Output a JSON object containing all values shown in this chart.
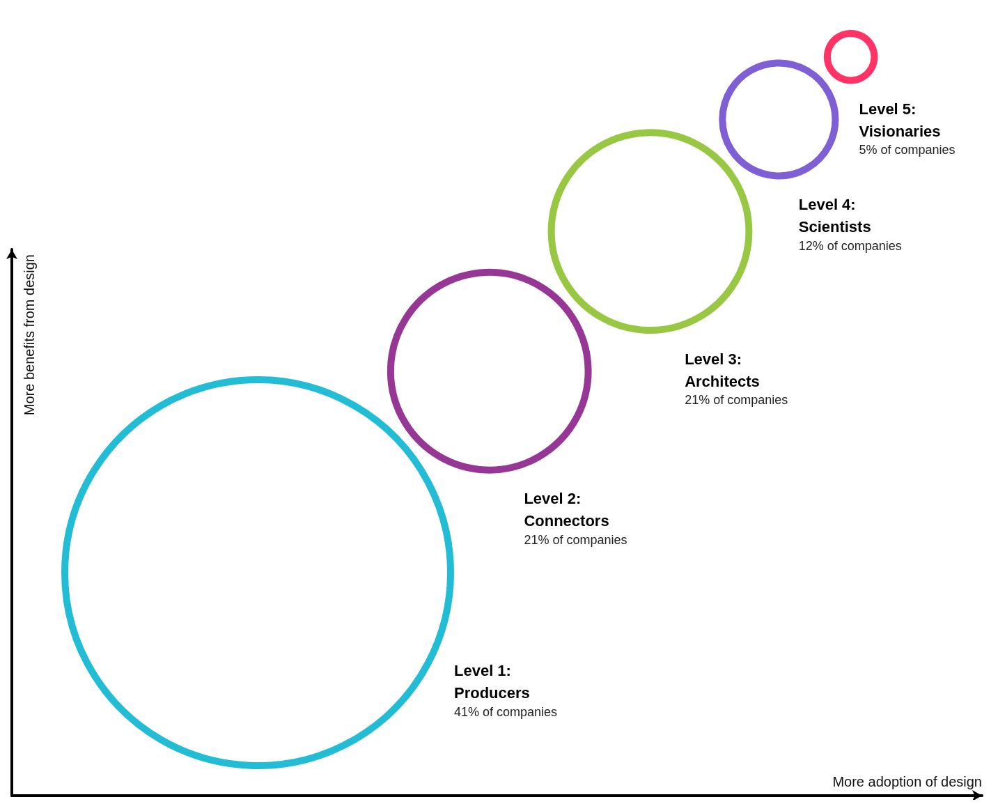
{
  "chart_data": {
    "type": "other",
    "xlabel": "More adoption of design",
    "ylabel": "More benefits from design",
    "categories": [
      "Level 1:\nProducers",
      "Level 2:\nConnectors",
      "Level 3:\nArchitects",
      "Level 4:\nScientists",
      "Level 5:\nVisionaries"
    ],
    "values": [
      41,
      21,
      21,
      12,
      5
    ],
    "value_labels": [
      "41% of companies",
      "21% of companies",
      "21% of companies",
      "12% of companies",
      "5% of companies"
    ],
    "colors": [
      "#22bcd4",
      "#963695",
      "#98c843",
      "#7f5fd4",
      "#ff3366"
    ]
  }
}
